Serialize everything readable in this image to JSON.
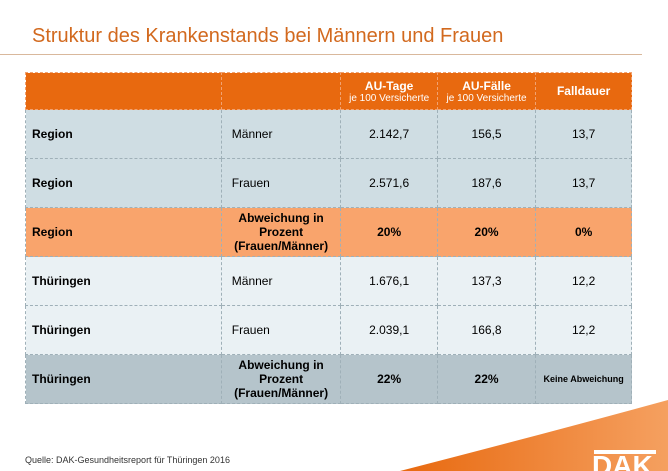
{
  "title": "Struktur des Krankenstands bei Männern und Frauen",
  "header": {
    "col3": "AU-Tage",
    "col3_sub": "je 100 Versicherte",
    "col4": "AU-Fälle",
    "col4_sub": "je 100 Versicherte",
    "col5": "Falldauer"
  },
  "rows": [
    {
      "region": "Region",
      "group": "Männer",
      "au_tage": "2.142,7",
      "au_faelle": "156,5",
      "falldauer": "13,7"
    },
    {
      "region": "Region",
      "group": "Frauen",
      "au_tage": "2.571,6",
      "au_faelle": "187,6",
      "falldauer": "13,7"
    },
    {
      "region": "Region",
      "group": "Abweichung in Prozent (Frauen/Männer)",
      "au_tage": "20%",
      "au_faelle": "20%",
      "falldauer": "0%"
    },
    {
      "region": "Thüringen",
      "group": "Männer",
      "au_tage": "1.676,1",
      "au_faelle": "137,3",
      "falldauer": "12,2"
    },
    {
      "region": "Thüringen",
      "group": "Frauen",
      "au_tage": "2.039,1",
      "au_faelle": "166,8",
      "falldauer": "12,2"
    },
    {
      "region": "Thüringen",
      "group": "Abweichung in Prozent (Frauen/Männer)",
      "au_tage": "22%",
      "au_faelle": "22%",
      "falldauer": "Keine Abweichung"
    }
  ],
  "source": "Quelle: DAK-Gesundheitsreport für Thüringen 2016",
  "logo": "DAK",
  "colors": {
    "accent": "#e8690f",
    "title": "#d2691e"
  }
}
